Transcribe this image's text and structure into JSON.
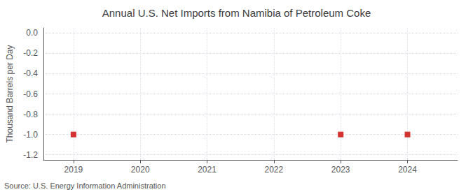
{
  "chart_data": {
    "type": "scatter",
    "title": "Annual U.S. Net Imports from Namibia of Petroleum Coke",
    "ylabel": "Thousand Barrels per Day",
    "annotations": [
      "Source: U.S. Energy Information Administration"
    ],
    "x": [
      2019,
      2023,
      2024
    ],
    "values": [
      -1.0,
      -1.0,
      -1.0
    ],
    "color": "#cc0000",
    "marker": "square",
    "xlim": [
      2018.55,
      2024.75
    ],
    "xticks": [
      2019,
      2020,
      2021,
      2022,
      2023,
      2024
    ],
    "ylim": [
      -1.25,
      0.05
    ],
    "yticks": [
      {
        "value": 0.0,
        "label": "0.0"
      },
      -0.2,
      -0.4,
      -0.6,
      -0.8,
      {
        "value": -1.0,
        "label": "-1.0"
      },
      -1.2
    ],
    "grid": true
  }
}
